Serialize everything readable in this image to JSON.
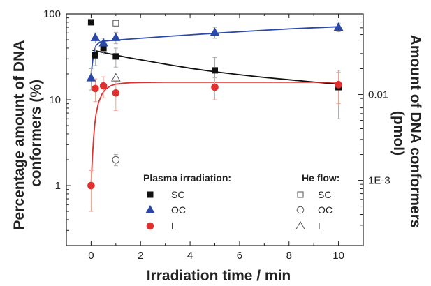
{
  "chart_data": {
    "type": "scatter",
    "xlabel": "Irradiation time / min",
    "ylabel_left": "Percentage amount of DNA conformers (%)",
    "ylabel_right": "Amount of DNA conformers (pmol)",
    "ylabel_right_lines": [
      "Amount of DNA conformers",
      "(pmol)"
    ],
    "ylabel_left_lines": [
      "Percentage amount of DNA",
      "conformers (%)"
    ],
    "xlim": [
      -1,
      11
    ],
    "ylim_left": [
      0.2,
      100
    ],
    "y_scale": "log",
    "x_ticks": [
      "0",
      "2",
      "4",
      "6",
      "8",
      "10"
    ],
    "x_tick_values": [
      0,
      2,
      4,
      6,
      8,
      10
    ],
    "y_left_ticks": [
      "1",
      "10",
      "100"
    ],
    "y_left_tick_values": [
      1,
      10,
      100
    ],
    "y_right_ticks": [
      "1E-3",
      "0.01"
    ],
    "y_right_tick_values": [
      1.15,
      11.5
    ],
    "legend": {
      "left_title": "Plasma irradiation:",
      "right_title": "He flow:",
      "left_entries": [
        "SC",
        "OC",
        "L"
      ],
      "right_entries": [
        "SC",
        "OC",
        "L"
      ]
    },
    "series": [
      {
        "name": "SC",
        "group": "plasma",
        "marker": "square-filled",
        "color": "#111111",
        "x": [
          0,
          0.17,
          0.5,
          1,
          5,
          10
        ],
        "y": [
          80,
          33,
          40,
          32,
          22,
          14
        ],
        "err": [
          5,
          8,
          6,
          8,
          9,
          8
        ],
        "fit_x": [
          0.05,
          0.3,
          0.6,
          1,
          1.5,
          2,
          3,
          4,
          5,
          6,
          7,
          8,
          9,
          10
        ],
        "fit_y": [
          38,
          36.6,
          35,
          33.2,
          31,
          29.2,
          26,
          23.3,
          21.2,
          19.6,
          18.2,
          17.1,
          16.1,
          15.2
        ]
      },
      {
        "name": "OC",
        "group": "plasma",
        "marker": "triangle-filled",
        "color": "#2b48a8",
        "x": [
          0,
          0.17,
          0.5,
          1,
          5,
          10
        ],
        "y": [
          18,
          53,
          46,
          53,
          61,
          70
        ],
        "err": [
          5,
          7,
          6,
          8,
          9,
          8
        ],
        "fit_x": [
          0,
          0.1,
          0.2,
          0.35,
          0.5,
          0.75,
          1,
          2,
          3,
          4,
          5,
          6,
          7,
          8,
          9,
          10
        ],
        "fit_y": [
          20,
          35,
          43,
          47,
          48,
          49,
          49.6,
          52,
          54.5,
          57,
          59.5,
          62,
          64.5,
          67,
          69,
          71
        ]
      },
      {
        "name": "L",
        "group": "plasma",
        "marker": "circle-filled",
        "color": "#e03030",
        "x": [
          0,
          0.17,
          0.5,
          1,
          5,
          10
        ],
        "y": [
          1,
          13.5,
          14.5,
          12,
          14,
          15
        ],
        "err": [
          0.5,
          4,
          4,
          4.5,
          4,
          6
        ],
        "fit_x": [
          0,
          0.05,
          0.1,
          0.15,
          0.2,
          0.3,
          0.45,
          0.6,
          0.8,
          1,
          1.3,
          1.6,
          2,
          3,
          5,
          7,
          10
        ],
        "fit_y": [
          1,
          2.1,
          3.6,
          5.2,
          6.8,
          9.3,
          11.8,
          13.4,
          14.6,
          15.2,
          15.6,
          15.8,
          15.9,
          16,
          16,
          16,
          16
        ]
      },
      {
        "name": "SC",
        "group": "he_flow",
        "marker": "square-open",
        "color": "#555555",
        "x": [
          1
        ],
        "y": [
          78
        ],
        "err": [
          0
        ]
      },
      {
        "name": "OC",
        "group": "he_flow",
        "marker": "circle-open",
        "color": "#555555",
        "x": [
          1
        ],
        "y": [
          2
        ],
        "err": [
          0.3
        ]
      },
      {
        "name": "L",
        "group": "he_flow",
        "marker": "triangle-open",
        "color": "#555555",
        "x": [
          1
        ],
        "y": [
          18
        ],
        "err": [
          0
        ]
      }
    ]
  }
}
